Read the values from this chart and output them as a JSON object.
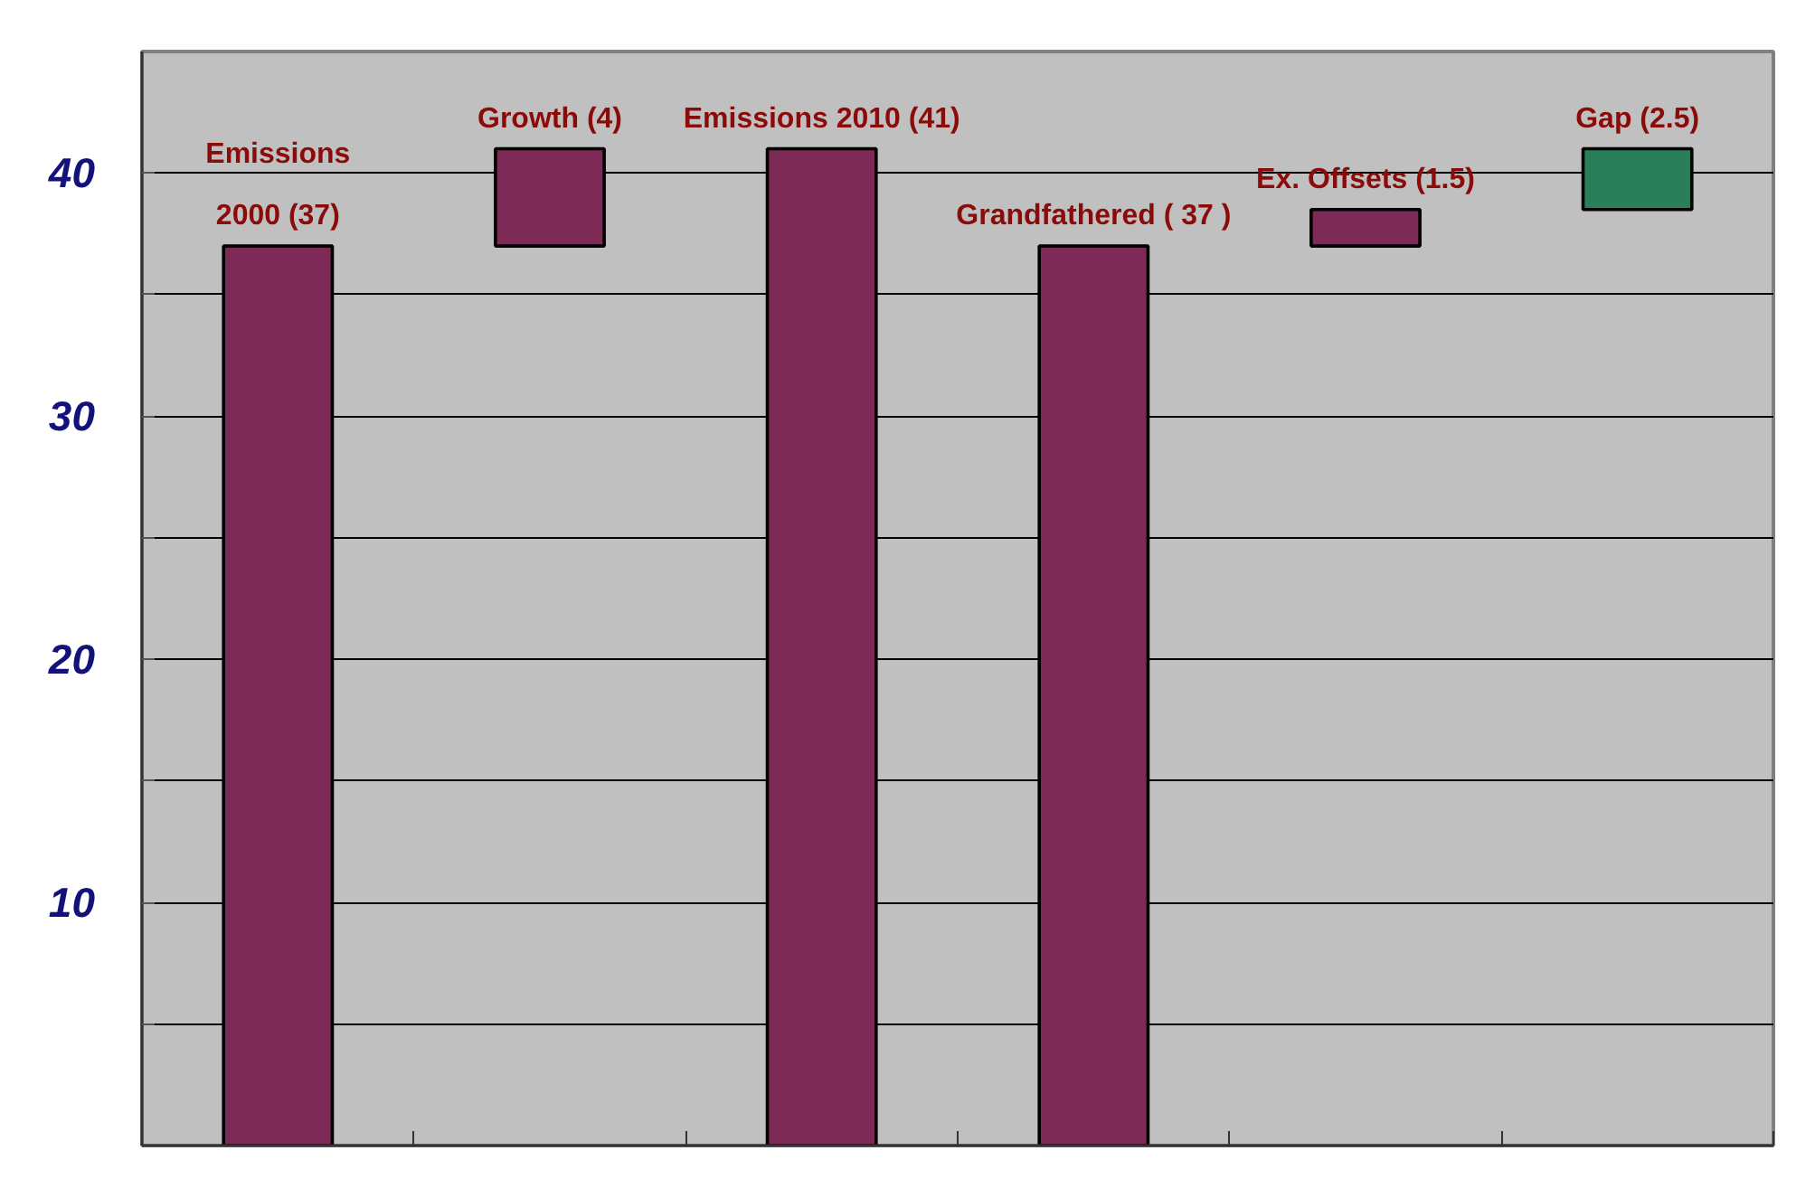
{
  "chart_data": {
    "type": "bar",
    "categories": [
      null,
      null,
      null,
      null,
      null,
      null
    ],
    "values": [
      37,
      4,
      41,
      37,
      1.5,
      2.5
    ],
    "base": [
      0,
      37,
      0,
      0,
      37,
      38.5
    ],
    "colors": [
      "#7d2a56",
      "#7d2a56",
      "#7d2a56",
      "#7d2a56",
      "#7d2a56",
      "#2a7f5a"
    ],
    "value_labels": [
      "Emissions\n2000 (37)",
      "Growth (4)",
      "Emissions 2010 (41)",
      "Grandfathered ( 37 )",
      "Ex. Offsets (1.5)",
      "Gap (2.5)"
    ],
    "ylim": [
      0,
      45
    ],
    "yticks": [
      {
        "value": 5,
        "label": null
      },
      10,
      {
        "value": 15,
        "label": null
      },
      20,
      {
        "value": 25,
        "label": null
      },
      30,
      {
        "value": 35,
        "label": null
      },
      40
    ],
    "grid": "y",
    "tick_labels": "y"
  }
}
